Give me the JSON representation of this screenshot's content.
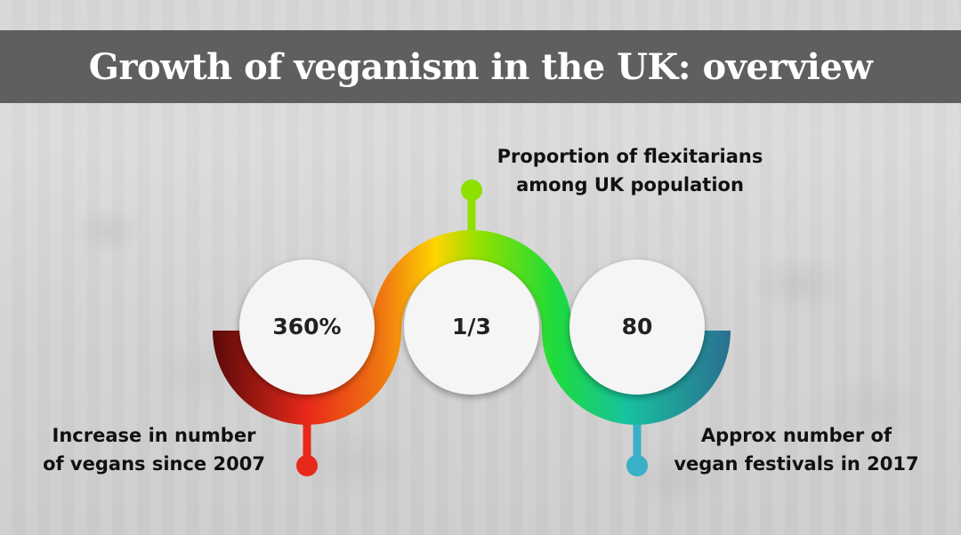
{
  "title": "Growth of veganism in the UK: overview",
  "stats": [
    {
      "value": "360%",
      "label_lines": [
        "Increase in number",
        "of vegans since 2007"
      ]
    },
    {
      "value": "1/3",
      "label_lines": [
        "Proportion of flexitarians",
        "among UK population"
      ]
    },
    {
      "value": "80",
      "label_lines": [
        "Approx number of",
        "vegan festivals in 2017"
      ]
    }
  ],
  "colors": {
    "title_bar": "#5f5f5f",
    "gradient": [
      "#5a0a0a",
      "#e8281a",
      "#f07a10",
      "#ffd400",
      "#8ee000",
      "#1edb3a",
      "#17c2a0",
      "#2a7090"
    ],
    "dot_left": "#e8281a",
    "dot_top": "#8ee000",
    "dot_right": "#3ab0c8"
  }
}
